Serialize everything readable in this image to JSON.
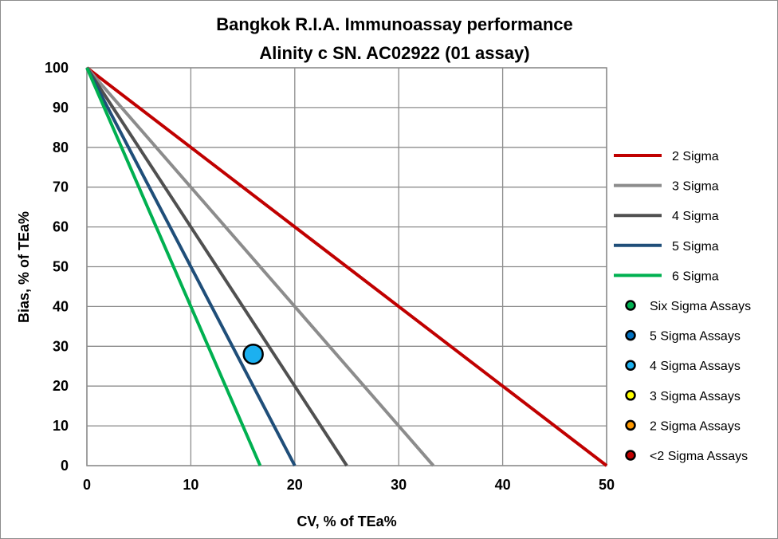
{
  "chart_data": {
    "type": "line",
    "title": [
      "Bangkok R.I.A. Immunoassay performance",
      "Alinity c SN. AC02922 (01 assay)"
    ],
    "xlabel": "CV, % of TEa%",
    "ylabel": "Bias, % of TEa%",
    "xlim": [
      0,
      50
    ],
    "ylim": [
      0,
      100
    ],
    "xticks": [
      0,
      10,
      20,
      30,
      40,
      50
    ],
    "yticks": [
      0,
      10,
      20,
      30,
      40,
      50,
      60,
      70,
      80,
      90,
      100
    ],
    "grid": true,
    "legend_placement": "right",
    "series": [
      {
        "name": "2 Sigma",
        "color": "#c00000",
        "x": [
          0,
          50
        ],
        "y": [
          100,
          0
        ]
      },
      {
        "name": "3 Sigma",
        "color": "#8c8c8c",
        "x": [
          0,
          33.33
        ],
        "y": [
          100,
          0
        ]
      },
      {
        "name": "4 Sigma",
        "color": "#505050",
        "x": [
          0,
          25
        ],
        "y": [
          100,
          0
        ]
      },
      {
        "name": "5 Sigma",
        "color": "#1f4e79",
        "x": [
          0,
          20
        ],
        "y": [
          100,
          0
        ]
      },
      {
        "name": "6 Sigma",
        "color": "#00b050",
        "x": [
          0,
          16.67
        ],
        "y": [
          100,
          0
        ]
      }
    ],
    "point_series": [
      {
        "name": "Six Sigma Assays",
        "color": "#00b050",
        "points": []
      },
      {
        "name": "5 Sigma Assays",
        "color": "#0070c0",
        "points": []
      },
      {
        "name": "4 Sigma Assays",
        "color": "#1cb0f0",
        "points": [
          [
            16,
            28
          ]
        ]
      },
      {
        "name": "3 Sigma Assays",
        "color": "#ffff00",
        "points": []
      },
      {
        "name": "2 Sigma Assays",
        "color": "#ff9900",
        "points": []
      },
      {
        "name": "<2 Sigma Assays",
        "color": "#c00000",
        "points": []
      }
    ]
  }
}
